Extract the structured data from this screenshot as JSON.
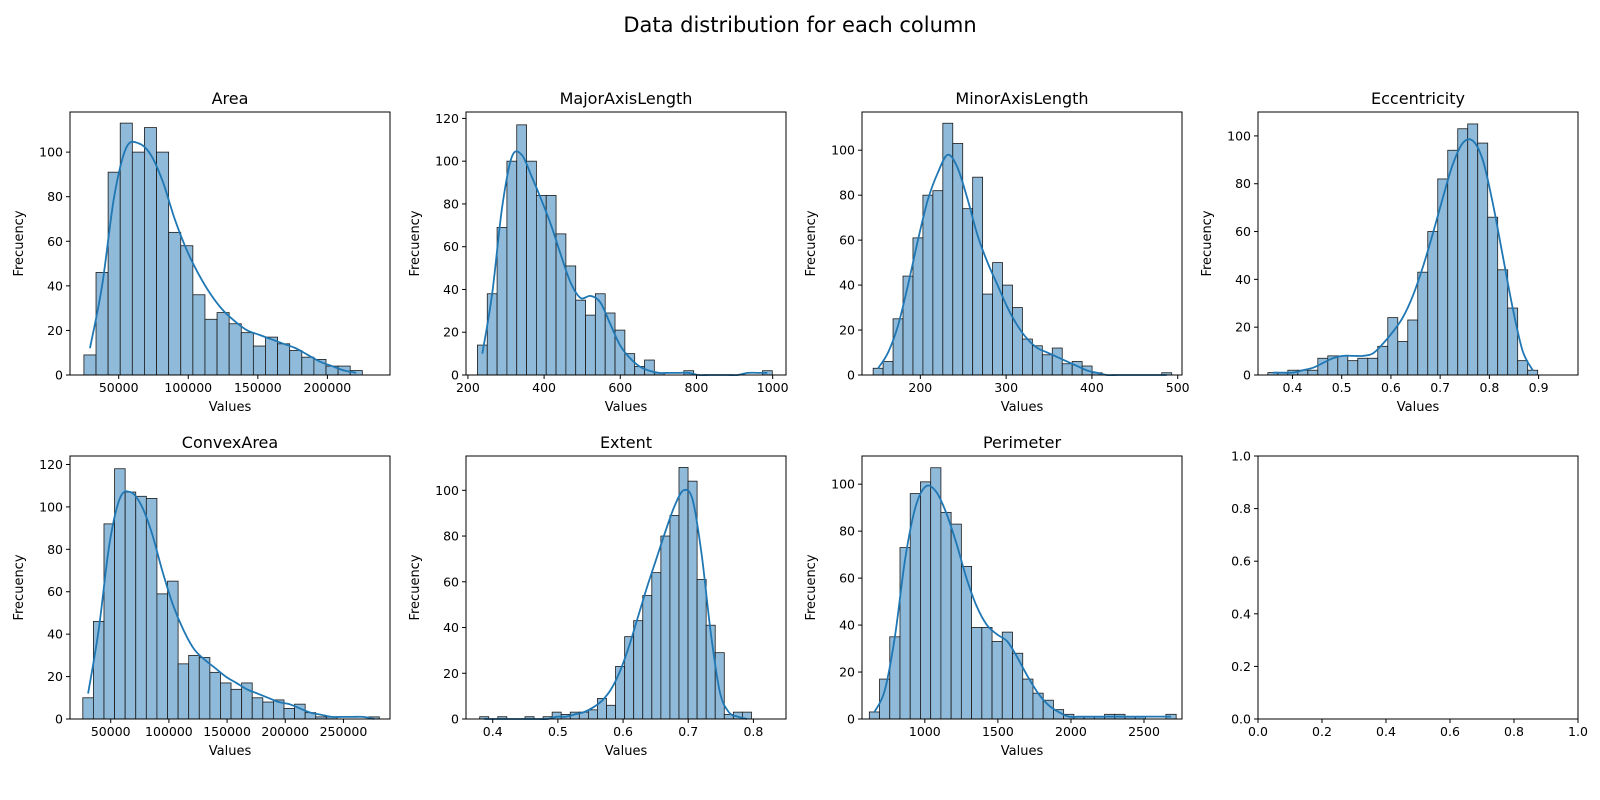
{
  "figure": {
    "title": "Data distribution for each column"
  },
  "colors": {
    "bar_fill": "#8fbad9",
    "bar_edge": "#1a1a1a",
    "kde_line": "#1f77b4",
    "axes_edge": "#000000"
  },
  "chart_data": [
    {
      "type": "bar",
      "subtype": "histogram_with_kde",
      "title": "Area",
      "xlabel": "Values",
      "ylabel": "Frecuency",
      "xlim": [
        15000,
        245000
      ],
      "ylim": [
        0,
        118
      ],
      "xticks": [
        50000,
        100000,
        150000,
        200000
      ],
      "yticks": [
        0,
        20,
        40,
        60,
        80,
        100
      ],
      "bin_start": 25000,
      "bin_width": 8700,
      "counts": [
        9,
        46,
        91,
        113,
        100,
        111,
        100,
        64,
        58,
        36,
        25,
        28,
        23,
        19,
        13,
        17,
        14,
        11,
        8,
        7,
        4,
        4,
        2
      ],
      "kde": [
        12,
        40,
        80,
        102,
        104,
        99,
        87,
        70,
        56,
        45,
        36,
        29,
        24,
        20,
        18,
        16,
        14,
        12,
        9,
        6,
        4,
        2,
        1
      ]
    },
    {
      "type": "bar",
      "subtype": "histogram_with_kde",
      "title": "MajorAxisLength",
      "xlabel": "Values",
      "ylabel": "Frecuency",
      "xlim": [
        195,
        1035
      ],
      "ylim": [
        0,
        123
      ],
      "xticks": [
        200,
        400,
        600,
        800,
        1000
      ],
      "yticks": [
        0,
        20,
        40,
        60,
        80,
        100,
        120
      ],
      "bin_start": 225,
      "bin_width": 25.8,
      "counts": [
        14,
        38,
        69,
        100,
        117,
        100,
        84,
        84,
        66,
        51,
        35,
        28,
        38,
        29,
        21,
        10,
        4,
        7,
        1,
        0,
        0,
        2,
        0,
        0,
        0,
        0,
        0,
        0,
        0,
        2
      ],
      "kde": [
        10,
        38,
        78,
        102,
        103,
        93,
        82,
        70,
        56,
        43,
        36,
        37,
        34,
        24,
        14,
        8,
        4,
        2,
        1,
        1,
        1,
        1,
        0,
        0,
        0,
        0,
        0,
        1,
        1,
        1
      ]
    },
    {
      "type": "bar",
      "subtype": "histogram_with_kde",
      "title": "MinorAxisLength",
      "xlabel": "Values",
      "ylabel": "Frecuency",
      "xlim": [
        132,
        505
      ],
      "ylim": [
        0,
        117
      ],
      "xticks": [
        200,
        300,
        400,
        500
      ],
      "yticks": [
        0,
        20,
        40,
        60,
        80,
        100
      ],
      "bin_start": 145,
      "bin_width": 11.6,
      "counts": [
        3,
        6,
        25,
        44,
        61,
        80,
        82,
        112,
        103,
        74,
        88,
        36,
        50,
        40,
        30,
        16,
        13,
        9,
        12,
        5,
        6,
        4,
        1,
        0,
        0,
        0,
        0,
        0,
        0,
        1
      ],
      "kde": [
        3,
        10,
        22,
        40,
        60,
        78,
        90,
        98,
        92,
        78,
        62,
        50,
        40,
        30,
        22,
        16,
        12,
        10,
        8,
        6,
        4,
        2,
        1,
        0,
        0,
        0,
        0,
        0,
        0,
        0
      ]
    },
    {
      "type": "bar",
      "subtype": "histogram_with_kde",
      "title": "Eccentricity",
      "xlabel": "Values",
      "ylabel": "Frecuency",
      "xlim": [
        0.33,
        0.98
      ],
      "ylim": [
        0,
        110
      ],
      "xticks": [
        0.4,
        0.5,
        0.6,
        0.7,
        0.8,
        0.9
      ],
      "yticks": [
        0,
        20,
        40,
        60,
        80,
        100
      ],
      "bin_start": 0.35,
      "bin_width": 0.0203,
      "counts": [
        1,
        1,
        2,
        2,
        2,
        7,
        8,
        8,
        6,
        7,
        7,
        12,
        24,
        14,
        23,
        43,
        60,
        82,
        94,
        103,
        105,
        97,
        66,
        44,
        28,
        6,
        2
      ],
      "kde": [
        1,
        1,
        1,
        2,
        3,
        5,
        7,
        8,
        8,
        8,
        9,
        13,
        18,
        24,
        33,
        45,
        59,
        74,
        88,
        97,
        98,
        90,
        72,
        50,
        28,
        10,
        2
      ]
    },
    {
      "type": "bar",
      "subtype": "histogram_with_kde",
      "title": "ConvexArea",
      "xlabel": "Values",
      "ylabel": "Frecuency",
      "xlim": [
        15000,
        290000
      ],
      "ylim": [
        0,
        124
      ],
      "xticks": [
        50000,
        100000,
        150000,
        200000,
        250000
      ],
      "yticks": [
        0,
        20,
        40,
        60,
        80,
        100,
        120
      ],
      "bin_start": 26000,
      "bin_width": 9100,
      "counts": [
        10,
        46,
        92,
        118,
        107,
        105,
        104,
        59,
        65,
        26,
        30,
        29,
        22,
        17,
        14,
        17,
        10,
        8,
        9,
        5,
        7,
        3,
        1,
        1,
        0,
        0,
        0,
        1
      ],
      "kde": [
        12,
        42,
        82,
        104,
        107,
        101,
        88,
        70,
        54,
        42,
        33,
        28,
        24,
        20,
        17,
        14,
        12,
        10,
        8,
        7,
        5,
        3,
        2,
        1,
        1,
        1,
        1,
        0
      ]
    },
    {
      "type": "bar",
      "subtype": "histogram_with_kde",
      "title": "Extent",
      "xlabel": "Values",
      "ylabel": "Frecuency",
      "xlim": [
        0.359,
        0.85
      ],
      "ylim": [
        0,
        115
      ],
      "xticks": [
        0.4,
        0.5,
        0.6,
        0.7,
        0.8
      ],
      "yticks": [
        0,
        20,
        40,
        60,
        80,
        100
      ],
      "bin_start": 0.38,
      "bin_width": 0.0139,
      "counts": [
        1,
        0,
        1,
        0,
        0,
        1,
        0,
        1,
        3,
        2,
        3,
        3,
        4,
        9,
        6,
        23,
        36,
        43,
        54,
        64,
        80,
        89,
        110,
        104,
        61,
        41,
        29,
        2,
        3,
        3
      ],
      "kde": [
        0,
        0,
        0,
        0,
        0,
        0,
        0,
        0,
        1,
        1,
        2,
        3,
        5,
        8,
        13,
        21,
        32,
        45,
        58,
        70,
        82,
        93,
        100,
        96,
        72,
        38,
        12,
        3,
        1,
        0
      ]
    },
    {
      "type": "bar",
      "subtype": "histogram_with_kde",
      "title": "Perimeter",
      "xlabel": "Values",
      "ylabel": "Frecuency",
      "xlim": [
        570,
        2760
      ],
      "ylim": [
        0,
        112
      ],
      "xticks": [
        1000,
        1500,
        2000,
        2500
      ],
      "yticks": [
        0,
        20,
        40,
        60,
        80,
        100
      ],
      "bin_start": 620,
      "bin_width": 70,
      "counts": [
        3,
        17,
        35,
        73,
        96,
        101,
        107,
        88,
        83,
        65,
        39,
        39,
        33,
        37,
        28,
        17,
        11,
        8,
        4,
        2,
        1,
        1,
        1,
        2,
        2,
        1,
        1,
        0,
        0,
        2
      ],
      "kde": [
        3,
        12,
        35,
        68,
        90,
        99,
        97,
        88,
        75,
        60,
        48,
        40,
        36,
        33,
        26,
        18,
        11,
        6,
        3,
        1,
        1,
        1,
        1,
        1,
        1,
        1,
        1,
        1,
        1,
        1
      ]
    },
    {
      "type": "bar",
      "subtype": "empty_axes",
      "title": "",
      "xlabel": "",
      "ylabel": "",
      "xlim": [
        0,
        1
      ],
      "ylim": [
        0,
        1
      ],
      "xticks": [
        0.0,
        0.2,
        0.4,
        0.6,
        0.8,
        1.0
      ],
      "yticks": [
        0.0,
        0.2,
        0.4,
        0.6,
        0.8,
        1.0
      ],
      "counts": [],
      "kde": []
    }
  ]
}
